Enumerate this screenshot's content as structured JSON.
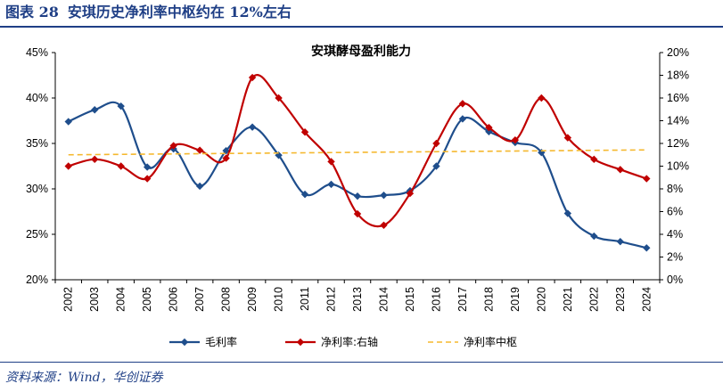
{
  "header": {
    "figure_label": "图表 28",
    "figure_title": "安琪历史净利率中枢约在 12%左右"
  },
  "footer": {
    "source": "资料来源：Wind，华创证券"
  },
  "colors": {
    "brand": "#1f3f86",
    "gross": "#1f4e8c",
    "net": "#c00000",
    "center": "#f5b82e"
  },
  "chart_data": {
    "type": "line",
    "title": "安琪酵母盈利能力",
    "categories": [
      "2002",
      "2003",
      "2004",
      "2005",
      "2006",
      "2007",
      "2008",
      "2009",
      "2010",
      "2011",
      "2012",
      "2013",
      "2014",
      "2015",
      "2016",
      "2017",
      "2018",
      "2019",
      "2020",
      "2021",
      "2022",
      "2023",
      "2024"
    ],
    "left_axis": {
      "ylim": [
        20,
        45
      ],
      "ticks": [
        "20%",
        "25%",
        "30%",
        "35%",
        "40%",
        "45%"
      ]
    },
    "right_axis": {
      "ylim": [
        0,
        20
      ],
      "ticks": [
        "0%",
        "2%",
        "4%",
        "6%",
        "8%",
        "10%",
        "12%",
        "14%",
        "16%",
        "18%",
        "20%"
      ]
    },
    "grid": false,
    "legend_position": "bottom",
    "series": [
      {
        "name": "毛利率",
        "axis": "left",
        "style": "line-diamond",
        "values": [
          37.4,
          38.7,
          39.1,
          32.4,
          34.4,
          30.3,
          34.2,
          36.8,
          33.7,
          29.4,
          30.5,
          29.2,
          29.3,
          29.8,
          32.5,
          37.7,
          36.3,
          35.1,
          34.0,
          27.3,
          24.8,
          24.2,
          23.5
        ]
      },
      {
        "name": "净利率:右轴",
        "axis": "right",
        "style": "line-diamond",
        "values": [
          10.0,
          10.6,
          10.0,
          8.9,
          11.8,
          11.4,
          10.7,
          17.8,
          16.0,
          13.0,
          10.4,
          5.8,
          4.8,
          7.6,
          12.0,
          15.5,
          13.4,
          12.3,
          16.0,
          12.5,
          10.6,
          9.7,
          8.9
        ]
      },
      {
        "name": "净利率中枢",
        "axis": "right",
        "style": "dashed",
        "values": [
          11.0,
          11.02,
          11.04,
          11.06,
          11.08,
          11.1,
          11.12,
          11.14,
          11.16,
          11.17,
          11.19,
          11.21,
          11.23,
          11.25,
          11.27,
          11.29,
          11.31,
          11.33,
          11.35,
          11.37,
          11.39,
          11.41,
          11.43
        ]
      }
    ]
  }
}
